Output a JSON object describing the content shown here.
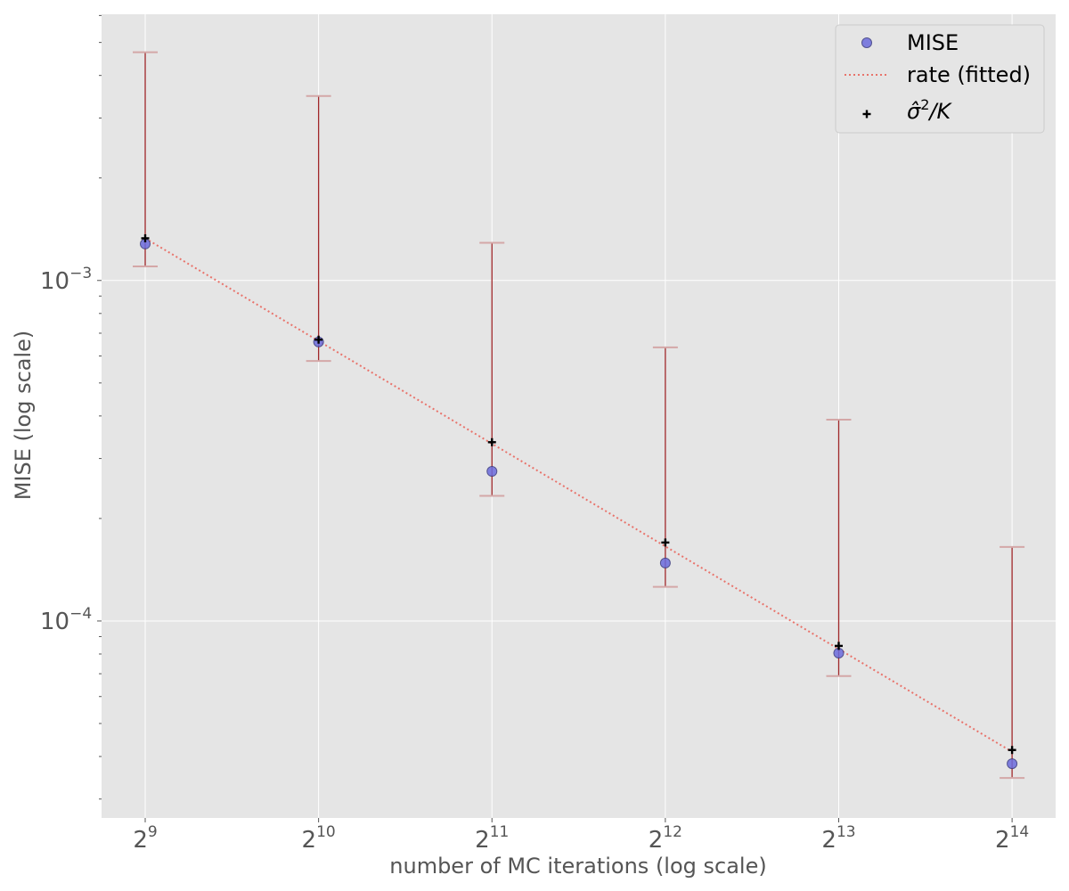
{
  "chart_data": {
    "type": "scatter",
    "title": "",
    "xlabel": "number of MC iterations (log scale)",
    "ylabel": "MISE (log scale)",
    "x_scale": "log2",
    "y_scale": "log10",
    "xlim": [
      430,
      19500
    ],
    "ylim": [
      2.64e-05,
      0.00605
    ],
    "grid": true,
    "legend_position": "top-right",
    "x_ticks": [
      {
        "base": "2",
        "exp": "9",
        "value": 512
      },
      {
        "base": "2",
        "exp": "10",
        "value": 1024
      },
      {
        "base": "2",
        "exp": "11",
        "value": 2048
      },
      {
        "base": "2",
        "exp": "12",
        "value": 4096
      },
      {
        "base": "2",
        "exp": "13",
        "value": 8192
      },
      {
        "base": "2",
        "exp": "14",
        "value": 16384
      }
    ],
    "y_ticks": [
      {
        "base": "10",
        "exp": "−3",
        "value": 0.001
      },
      {
        "base": "10",
        "exp": "−4",
        "value": 0.0001
      }
    ],
    "series": [
      {
        "name": "MISE",
        "kind": "points",
        "color": "#6b6bdd",
        "x": [
          512,
          1024,
          2048,
          4096,
          8192,
          16384
        ],
        "y": [
          0.00128,
          0.00066,
          0.000275,
          0.000148,
          8.05e-05,
          3.81e-05
        ]
      },
      {
        "name": "rate (fitted)",
        "kind": "line",
        "color": "#e8736b",
        "x": [
          512,
          16384
        ],
        "y": [
          0.00133,
          4.13e-05
        ]
      },
      {
        "name": "σ̂²/K",
        "legend_label": {
          "sigma": "σ̂",
          "sup": "2",
          "rest": "/K"
        },
        "kind": "plus",
        "color": "#000000",
        "x": [
          512,
          1024,
          2048,
          4096,
          8192,
          16384
        ],
        "y": [
          0.00133,
          0.00067,
          0.000335,
          0.00017,
          8.45e-05,
          4.18e-05
        ]
      }
    ],
    "error_bars": {
      "color": "#a0282a",
      "cap_color": "#d4a7a7",
      "x": [
        512,
        1024,
        2048,
        4096,
        8192,
        16384
      ],
      "low": [
        0.0011,
        0.00058,
        0.000233,
        0.000126,
        6.89e-05,
        3.46e-05
      ],
      "high": [
        0.00468,
        0.00348,
        0.00129,
        0.000636,
        0.00039,
        0.000165
      ]
    }
  }
}
